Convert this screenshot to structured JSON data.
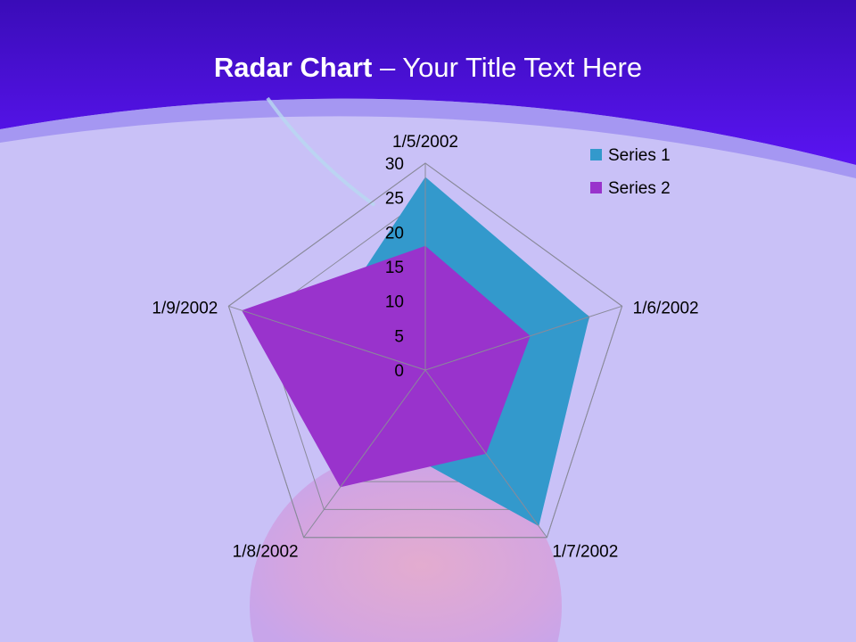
{
  "slide": {
    "title_bold": "Radar Chart",
    "title_rest": " – Your Title Text Here"
  },
  "colors": {
    "series1": "#3399cc",
    "series2": "#9933cc",
    "grid": "#8a8a9a",
    "header": "#4a10e0"
  },
  "chart_data": {
    "type": "radar",
    "categories": [
      "1/5/2002",
      "1/6/2002",
      "1/7/2002",
      "1/8/2002",
      "1/9/2002"
    ],
    "series": [
      {
        "name": "Series 1",
        "values": [
          28,
          25,
          28,
          12,
          16
        ]
      },
      {
        "name": "Series 2",
        "values": [
          18,
          16,
          15,
          21,
          28
        ]
      }
    ],
    "rlim": [
      0,
      30
    ],
    "ticks": [
      0,
      5,
      10,
      15,
      20,
      25,
      30
    ],
    "tick_labels": [
      "0",
      "5",
      "10",
      "15",
      "20",
      "25",
      "30"
    ],
    "grid": true,
    "legend": "top-right"
  }
}
